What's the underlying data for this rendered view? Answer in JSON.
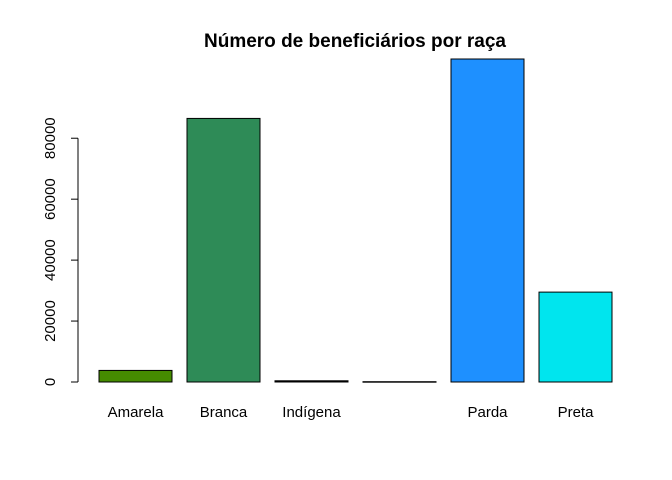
{
  "chart_data": {
    "type": "bar",
    "title": "Número de beneficiários por raça",
    "xlabel": "",
    "ylabel": "",
    "categories": [
      "Amarela",
      "Branca",
      "Indígena",
      "",
      "Parda",
      "Preta"
    ],
    "values": [
      3800,
      86500,
      400,
      100,
      106000,
      29500
    ],
    "colors": [
      "#458B00",
      "#2E8B57",
      "#000000",
      "#000000",
      "#1E90FF",
      "#00E5EE"
    ],
    "yticks": [
      0,
      20000,
      40000,
      60000,
      80000
    ],
    "ytick_labels": [
      "0",
      "20000",
      "40000",
      "60000",
      "80000"
    ],
    "ylim": [
      0,
      106000
    ],
    "grid": false,
    "legend": "none"
  }
}
